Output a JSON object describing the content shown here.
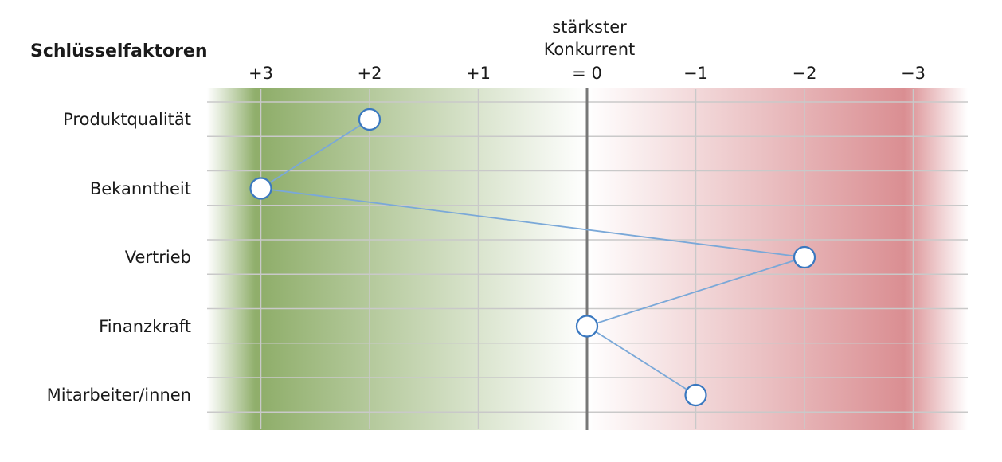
{
  "chart_data": {
    "type": "scatter",
    "title": "",
    "row_axis_title": "Schlüsselfaktoren",
    "reference_label_line1": "stärkster",
    "reference_label_line2": "Konkurrent",
    "x_ticks": [
      {
        "value": 3,
        "label": "+3"
      },
      {
        "value": 2,
        "label": "+2"
      },
      {
        "value": 1,
        "label": "+1"
      },
      {
        "value": 0,
        "label": "= 0"
      },
      {
        "value": -1,
        "label": "−1"
      },
      {
        "value": -2,
        "label": "−2"
      },
      {
        "value": -3,
        "label": "−3"
      }
    ],
    "x_direction": "descending",
    "categories": [
      "Produktqualität",
      "Bekanntheit",
      "Vertrieb",
      "Finanzkraft",
      "Mitarbeiter/innen"
    ],
    "values": [
      2,
      3,
      -2,
      0,
      -1
    ],
    "grid": true,
    "background_gradient": {
      "positive_color": "#8fae6a",
      "neutral_color": "#ffffff",
      "negative_color": "#d98b8f"
    },
    "colors": {
      "line": "#7aa8d8",
      "marker_stroke": "#3a78c0",
      "marker_fill": "#ffffff",
      "reference_line": "#777777",
      "grid": "#c9c9c9"
    }
  }
}
